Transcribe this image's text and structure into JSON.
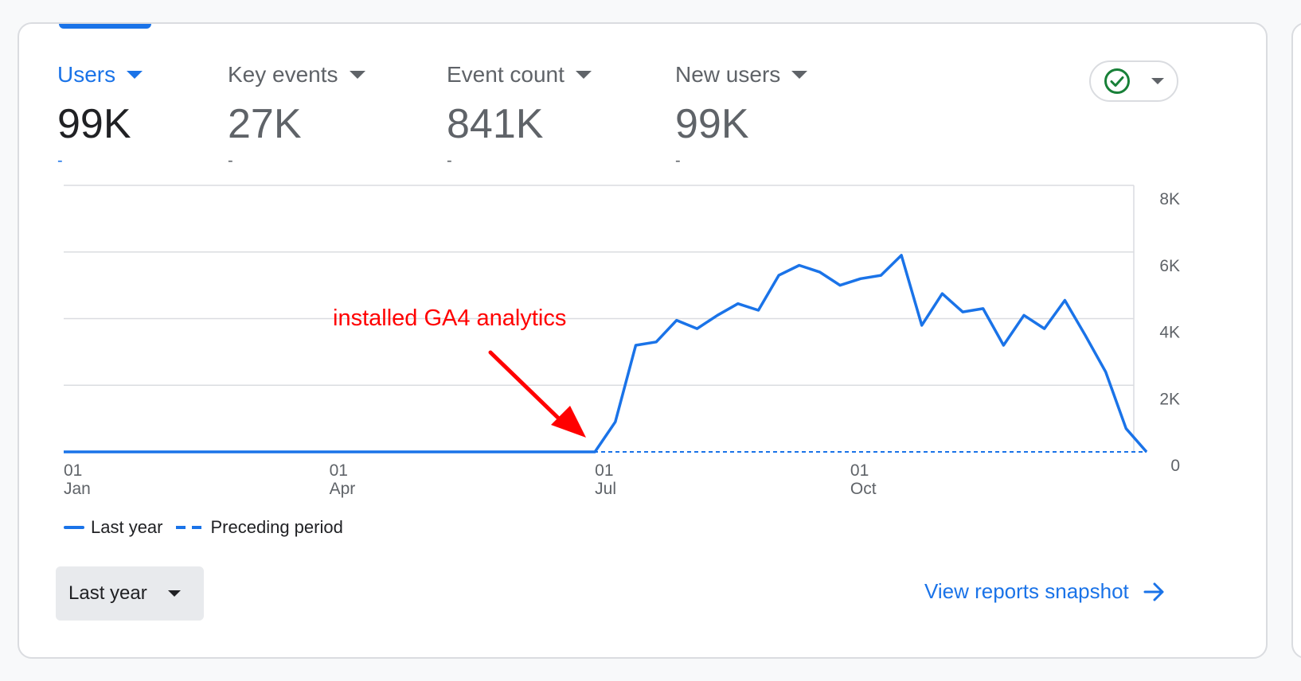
{
  "metrics": [
    {
      "label": "Users",
      "value": "99K",
      "delta": "-"
    },
    {
      "label": "Key events",
      "value": "27K",
      "delta": "-"
    },
    {
      "label": "Event count",
      "value": "841K",
      "delta": "-"
    },
    {
      "label": "New users",
      "value": "99K",
      "delta": "-"
    }
  ],
  "status_icon": "check-circle-icon",
  "annotation": "installed GA4 analytics",
  "legend": {
    "last_year": "Last year",
    "preceding": "Preceding period"
  },
  "range_selector": {
    "label": "Last year"
  },
  "snapshot_link": {
    "label": "View reports snapshot"
  },
  "colors": {
    "accent": "#1a73e8",
    "annotation": "#ff0000",
    "status_green": "#188038"
  },
  "chart_data": {
    "type": "line",
    "ylim": [
      0,
      8000
    ],
    "y_ticks": [
      "0",
      "2K",
      "4K",
      "6K",
      "8K"
    ],
    "x_ticks": [
      {
        "day": "01",
        "month": "Jan",
        "week": 0
      },
      {
        "day": "01",
        "month": "Apr",
        "week": 13
      },
      {
        "day": "01",
        "month": "Jul",
        "week": 26
      },
      {
        "day": "01",
        "month": "Oct",
        "week": 38.5
      }
    ],
    "series": [
      {
        "name": "Last year",
        "style": "solid",
        "values": [
          0,
          0,
          0,
          0,
          0,
          0,
          0,
          0,
          0,
          0,
          0,
          0,
          0,
          0,
          0,
          0,
          0,
          0,
          0,
          0,
          0,
          0,
          0,
          0,
          0,
          0,
          0,
          900,
          3200,
          3300,
          3950,
          3700,
          4100,
          4450,
          4250,
          5300,
          5600,
          5400,
          5000,
          5200,
          5300,
          5900,
          3800,
          4750,
          4200,
          4300,
          3200,
          4100,
          3700,
          4550,
          3500,
          2400,
          700,
          0
        ]
      },
      {
        "name": "Preceding period",
        "style": "dashed",
        "values": [
          0,
          0,
          0,
          0,
          0,
          0,
          0,
          0,
          0,
          0,
          0,
          0,
          0,
          0,
          0,
          0,
          0,
          0,
          0,
          0,
          0,
          0,
          0,
          0,
          0,
          0,
          0,
          0,
          0,
          0,
          0,
          0,
          0,
          0,
          0,
          0,
          0,
          0,
          0,
          0,
          0,
          0,
          0,
          0,
          0,
          0,
          0,
          0,
          0,
          0,
          0,
          0,
          0,
          0
        ]
      }
    ]
  }
}
